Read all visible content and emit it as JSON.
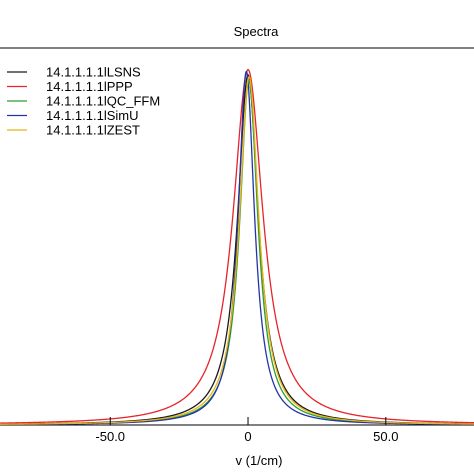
{
  "chart_data": {
    "type": "line",
    "title": "Spectra",
    "xlabel": "v (1/cm)",
    "ylabel": "",
    "xlim": [
      -90,
      82
    ],
    "ylim": [
      0,
      1.05
    ],
    "xticks": [
      -50,
      0,
      50
    ],
    "xtick_labels": [
      "-50.0",
      "0",
      "50.0"
    ],
    "grid": false,
    "legend": "top-left",
    "series": [
      {
        "name": "14.1.1.1.1lLSNS",
        "color": "#1a1a1a",
        "center": 0.0,
        "hwhm": 4.6,
        "peak": 0.975
      },
      {
        "name": "14.1.1.1.1lPPP",
        "color": "#e8232a",
        "center": 0.0,
        "hwhm": 6.6,
        "peak": 0.99
      },
      {
        "name": "14.1.1.1.1lQC_FFM",
        "color": "#2e9e2e",
        "center": 0.3,
        "hwhm": 4.0,
        "peak": 0.96
      },
      {
        "name": "14.1.1.1.1lSimU",
        "color": "#2633a8",
        "center": -0.6,
        "hwhm": 3.6,
        "peak": 0.985
      },
      {
        "name": "14.1.1.1.1lZEST",
        "color": "#e8b417",
        "center": 0.4,
        "hwhm": 4.3,
        "peak": 0.97
      }
    ]
  }
}
